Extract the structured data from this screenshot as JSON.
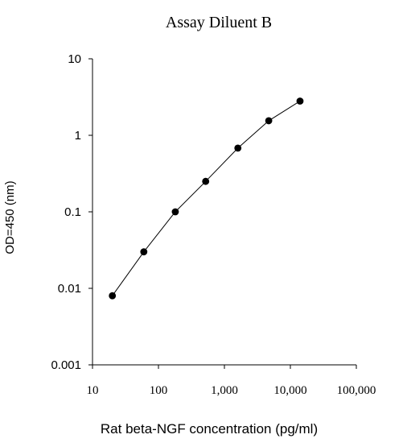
{
  "chart_data": {
    "type": "line",
    "title": "Assay Diluent B",
    "xlabel": "Rat beta-NGF concentration (pg/ml)",
    "ylabel": "OD=450 (nm)",
    "xscale": "log",
    "yscale": "log",
    "xlim": [
      10,
      100000
    ],
    "ylim": [
      0.001,
      10
    ],
    "xticks": [
      10,
      100,
      1000,
      10000,
      100000
    ],
    "xtick_labels": [
      "10",
      "100",
      "1,000",
      "10,000",
      "100,000"
    ],
    "yticks": [
      0.001,
      0.01,
      0.1,
      1,
      10
    ],
    "ytick_labels": [
      "0.001",
      "0.01",
      "0.1",
      "1",
      "10"
    ],
    "grid": false,
    "legend": "none",
    "series": [
      {
        "x": [
          20,
          60,
          180,
          520,
          1600,
          4700,
          14000
        ],
        "y": [
          0.008,
          0.03,
          0.1,
          0.25,
          0.68,
          1.55,
          2.8
        ],
        "color": "#000000",
        "marker": "circle"
      }
    ]
  }
}
